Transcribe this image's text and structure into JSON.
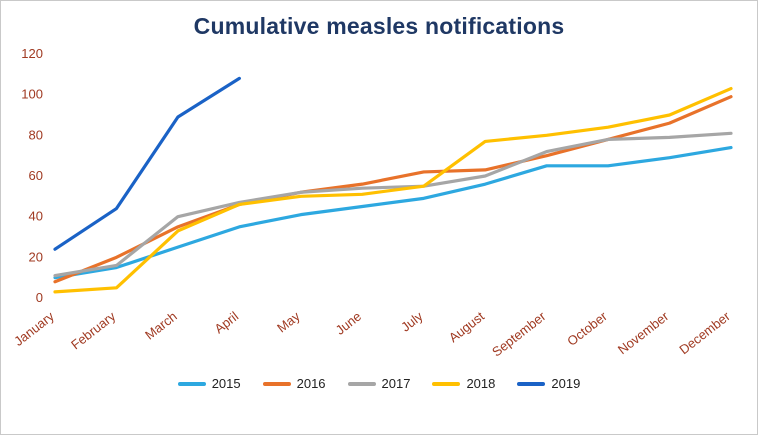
{
  "chart_data": {
    "type": "line",
    "title": "Cumulative measles notifications",
    "categories": [
      "January",
      "February",
      "March",
      "April",
      "May",
      "June",
      "July",
      "August",
      "September",
      "October",
      "November",
      "December"
    ],
    "series": [
      {
        "name": "2015",
        "color": "#2da8e0",
        "values": [
          10,
          15,
          25,
          35,
          41,
          45,
          49,
          56,
          65,
          65,
          69,
          74
        ]
      },
      {
        "name": "2016",
        "color": "#e8722a",
        "values": [
          8,
          20,
          35,
          46,
          52,
          56,
          62,
          63,
          70,
          78,
          86,
          99
        ]
      },
      {
        "name": "2017",
        "color": "#a6a6a6",
        "values": [
          11,
          16,
          40,
          47,
          52,
          54,
          55,
          60,
          72,
          78,
          79,
          81
        ]
      },
      {
        "name": "2018",
        "color": "#ffc000",
        "values": [
          3,
          5,
          33,
          46,
          50,
          51,
          55,
          77,
          80,
          84,
          90,
          103
        ]
      },
      {
        "name": "2019",
        "color": "#1a62c6",
        "values": [
          24,
          44,
          89,
          108,
          null,
          null,
          null,
          null,
          null,
          null,
          null,
          null
        ]
      }
    ],
    "xlabel": "",
    "ylabel": "",
    "ylim": [
      0,
      120
    ],
    "y_tick_step": 20,
    "y_tick_labels": [
      "0",
      "20",
      "40",
      "60",
      "80",
      "100",
      "120"
    ],
    "grid": false,
    "legend_position": "bottom",
    "legend_labels": [
      "2015",
      "2016",
      "2017",
      "2018",
      "2019"
    ]
  },
  "style": {
    "title_color": "#1f3864",
    "axis_label_color": "#a03a22",
    "legend_text_color": "#222222",
    "background_color": "#ffffff"
  }
}
